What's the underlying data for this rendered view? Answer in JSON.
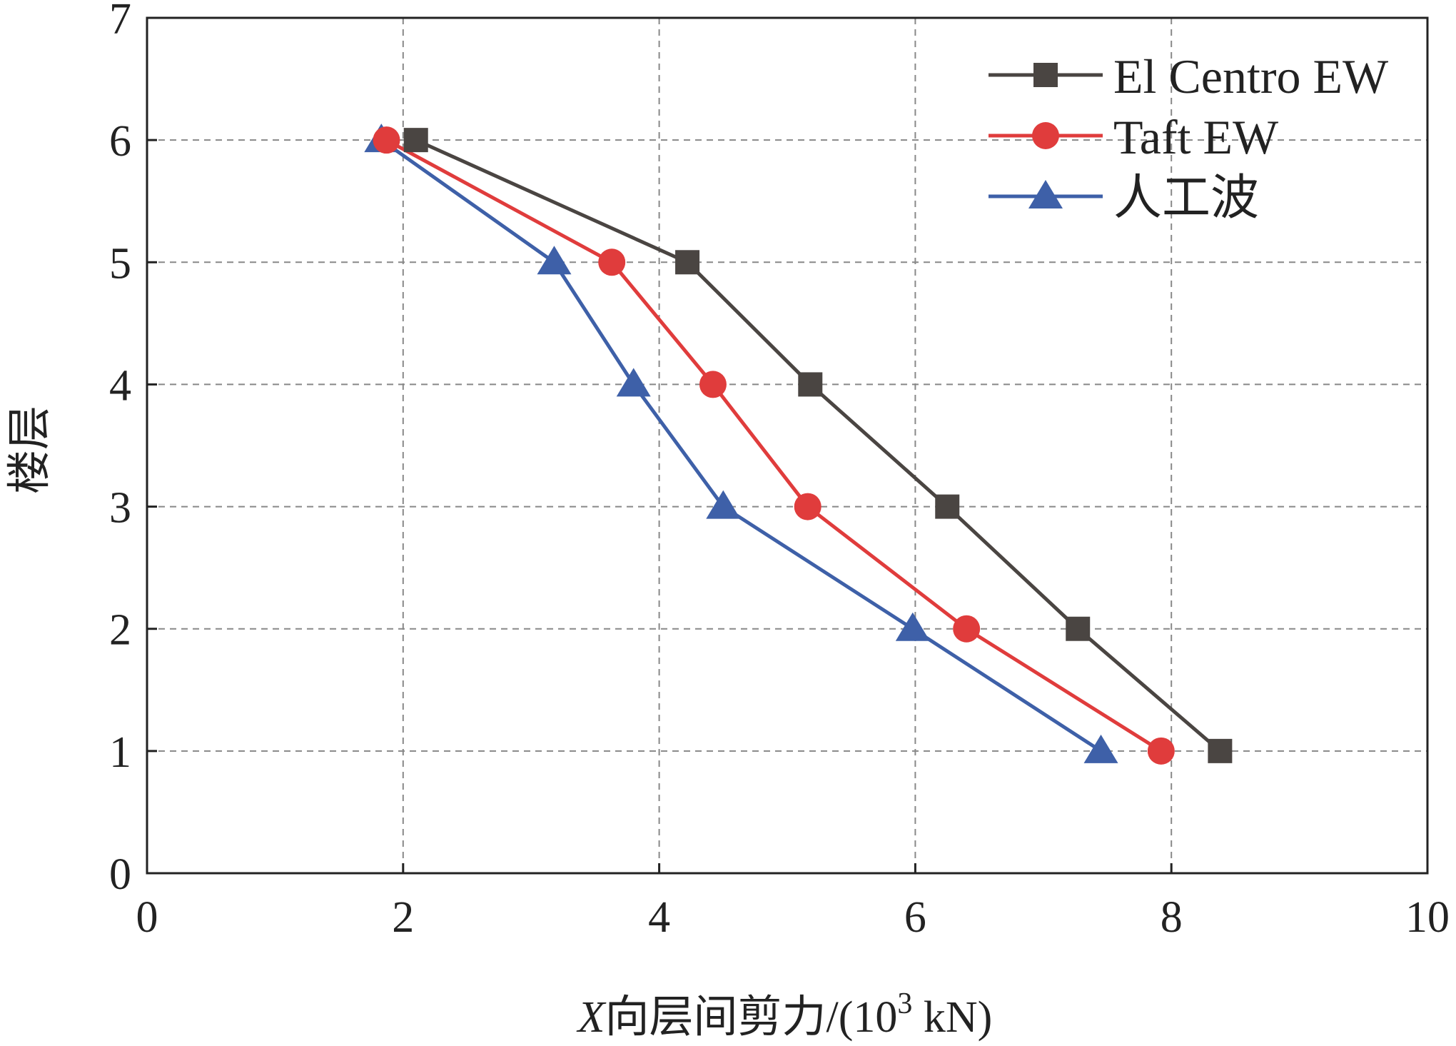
{
  "chart_data": {
    "type": "line",
    "title": "",
    "xlabel_prefix": "X",
    "xlabel_main": "向层间剪力/(10",
    "xlabel_sup": "3",
    "xlabel_suffix": " kN)",
    "ylabel": "楼层",
    "xlim": [
      0,
      10
    ],
    "ylim": [
      0,
      7
    ],
    "xticks": [
      "0",
      "2",
      "4",
      "6",
      "8",
      "10"
    ],
    "yticks": [
      "0",
      "1",
      "2",
      "3",
      "4",
      "5",
      "6",
      "7"
    ],
    "grid": true,
    "legend_position": "top-right",
    "series": [
      {
        "name": "El Centro EW",
        "color": "#4a4542",
        "marker": "square",
        "x": [
          8.38,
          7.27,
          6.25,
          5.18,
          4.22,
          2.1
        ],
        "y": [
          1,
          2,
          3,
          4,
          5,
          6
        ]
      },
      {
        "name": "Taft EW",
        "color": "#e03c3c",
        "marker": "circle",
        "x": [
          7.92,
          6.4,
          5.16,
          4.42,
          3.63,
          1.87
        ],
        "y": [
          1,
          2,
          3,
          4,
          5,
          6
        ]
      },
      {
        "name": "人工波",
        "color": "#3e60a8",
        "marker": "triangle",
        "x": [
          7.45,
          5.98,
          4.5,
          3.8,
          3.18,
          1.83
        ],
        "y": [
          1,
          2,
          3,
          4,
          5,
          6
        ]
      }
    ]
  }
}
